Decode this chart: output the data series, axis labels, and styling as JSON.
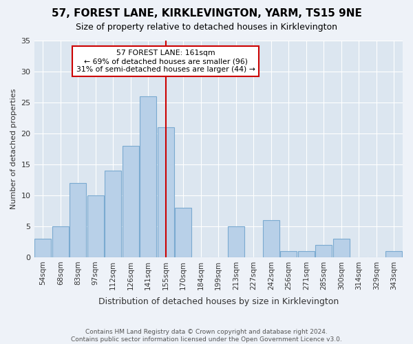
{
  "title": "57, FOREST LANE, KIRKLEVINGTON, YARM, TS15 9NE",
  "subtitle": "Size of property relative to detached houses in Kirklevington",
  "xlabel": "Distribution of detached houses by size in Kirklevington",
  "ylabel": "Number of detached properties",
  "categories": [
    "54sqm",
    "68sqm",
    "83sqm",
    "97sqm",
    "112sqm",
    "126sqm",
    "141sqm",
    "155sqm",
    "170sqm",
    "184sqm",
    "199sqm",
    "213sqm",
    "227sqm",
    "242sqm",
    "256sqm",
    "271sqm",
    "285sqm",
    "300sqm",
    "314sqm",
    "329sqm",
    "343sqm"
  ],
  "values": [
    3,
    5,
    12,
    10,
    14,
    18,
    26,
    21,
    8,
    0,
    0,
    5,
    0,
    6,
    1,
    1,
    2,
    3,
    0,
    0,
    1
  ],
  "bar_color": "#b8d0e8",
  "bar_edge_color": "#7aaad0",
  "vline_x_index": 7,
  "vline_color": "#cc0000",
  "annotation_text": "57 FOREST LANE: 161sqm\n← 69% of detached houses are smaller (96)\n31% of semi-detached houses are larger (44) →",
  "annotation_box_color": "white",
  "annotation_box_edge_color": "#cc0000",
  "ylim": [
    0,
    35
  ],
  "yticks": [
    0,
    5,
    10,
    15,
    20,
    25,
    30,
    35
  ],
  "footer": "Contains HM Land Registry data © Crown copyright and database right 2024.\nContains public sector information licensed under the Open Government Licence v3.0.",
  "bg_color": "#eef2f8",
  "plot_bg_color": "#dce6f0",
  "grid_color": "#ffffff",
  "title_fontsize": 11,
  "subtitle_fontsize": 9,
  "xlabel_fontsize": 9,
  "ylabel_fontsize": 8
}
